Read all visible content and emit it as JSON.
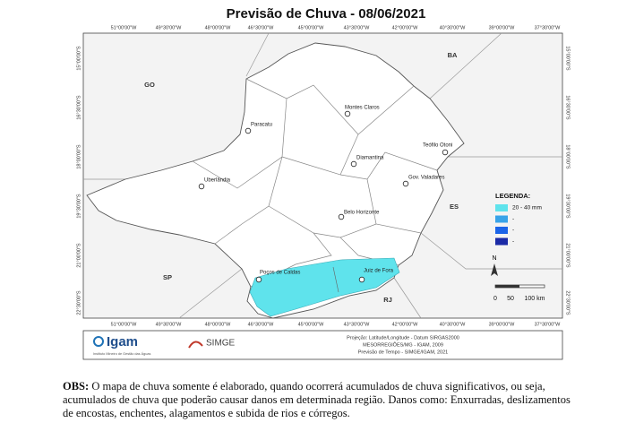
{
  "title": "Previsão de Chuva - 08/06/2021",
  "map": {
    "longitude_labels": [
      "51°00'00\"W",
      "49°30'00\"W",
      "48°00'00\"W",
      "46°30'00\"W",
      "45°00'00\"W",
      "43°30'00\"W",
      "42°00'00\"W",
      "40°30'00\"W",
      "39°00'00\"W",
      "37°30'00\"W"
    ],
    "latitude_labels": [
      "15°00'00\"S",
      "16°30'00\"S",
      "18°00'00\"S",
      "19°30'00\"S",
      "21°00'00\"S",
      "22°30'00\"S"
    ],
    "states": [
      "GO",
      "BA",
      "ES",
      "SP",
      "RJ"
    ],
    "cities": [
      "Montes Claros",
      "Paracatu",
      "Teófilo Otoni",
      "Diamantina",
      "Gov. Valadares",
      "Uberlândia",
      "Belo Horizonte",
      "Poços de Caldas",
      "Juiz de Fora"
    ],
    "north": "N",
    "scale": [
      "0",
      "50",
      "100 km"
    ]
  },
  "legend": {
    "title": "LEGENDA:",
    "items": [
      {
        "label": "20 - 40 mm",
        "color": "#5fe3ec"
      },
      {
        "label": "-",
        "color": "#38a3e8"
      },
      {
        "label": "-",
        "color": "#1c64e8"
      },
      {
        "label": "-",
        "color": "#1b2aa6"
      }
    ]
  },
  "footer": {
    "logo_igam": "Igam",
    "logo_igam_sub": "Instituto Mineiro de Gestão das Águas",
    "logo_simge": "SIMGE",
    "credits": [
      "Projeção: Latitude/Longitude - Datum SIRGAS2000",
      "MESORREGIÕES/MG - IGAM, 2009",
      "Previsão de Tempo - SIMGE/IGAM, 2021"
    ]
  },
  "obs": {
    "label": "OBS:",
    "text": "O mapa de chuva somente é elaborado, quando ocorrerá acumulados de chuva significativos, ou seja, acumulados de chuva que poderão causar danos em determinada região. Danos como: Enxurradas, deslizamentos de encostas, enchentes, alagamentos e subida de rios e córregos."
  }
}
